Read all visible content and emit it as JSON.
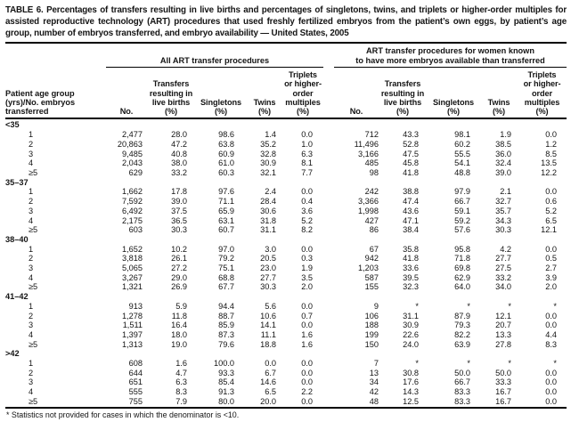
{
  "colors": {
    "text": "#141414",
    "background": "#ffffff",
    "rule": "#000000"
  },
  "table": {
    "title": "TABLE 6. Percentages of transfers resulting in live births and percentages of singletons, twins, and triplets or higher-order multiples for assisted reproductive technology (ART) procedures that used freshly fertilized embryos from the patient’s own eggs, by patient’s age group, number of embryos transferred, and embryo availability — United States, 2005",
    "stub_header_lines": [
      "Patient age group",
      "(yrs)/No. embryos",
      "transferred"
    ],
    "groups": [
      {
        "label_lines": [
          "All ART transfer procedures"
        ],
        "column_keys": [
          "no",
          "live-births-pct",
          "singletons-pct",
          "twins-pct",
          "triplets-pct"
        ],
        "column_header_lines": [
          [
            "No."
          ],
          [
            "Transfers",
            "resulting in",
            "live births",
            "(%)"
          ],
          [
            "Singletons",
            "(%)"
          ],
          [
            "Twins",
            "(%)"
          ],
          [
            "Triplets",
            "or higher-",
            "order",
            "multiples",
            "(%)"
          ]
        ]
      },
      {
        "label_lines": [
          "ART transfer procedures for women known",
          "to have more embryos available than transferred"
        ],
        "column_keys": [
          "no",
          "live-births-pct",
          "singletons-pct",
          "twins-pct",
          "triplets-pct"
        ],
        "column_header_lines": [
          [
            "No."
          ],
          [
            "Transfers",
            "resulting in",
            "live births",
            "(%)"
          ],
          [
            "Singletons",
            "(%)"
          ],
          [
            "Twins",
            "(%)"
          ],
          [
            "Triplets",
            "or higher-",
            "order",
            "multiples",
            "(%)"
          ]
        ]
      }
    ],
    "age_groups": [
      {
        "label": "<35",
        "rows": [
          {
            "embryos": "1",
            "all": [
              "2,477",
              "28.0",
              "98.6",
              "1.4",
              "0.0"
            ],
            "more": [
              "712",
              "43.3",
              "98.1",
              "1.9",
              "0.0"
            ]
          },
          {
            "embryos": "2",
            "all": [
              "20,863",
              "47.2",
              "63.8",
              "35.2",
              "1.0"
            ],
            "more": [
              "11,496",
              "52.8",
              "60.2",
              "38.5",
              "1.2"
            ]
          },
          {
            "embryos": "3",
            "all": [
              "9,485",
              "40.8",
              "60.9",
              "32.8",
              "6.3"
            ],
            "more": [
              "3,166",
              "47.5",
              "55.5",
              "36.0",
              "8.5"
            ]
          },
          {
            "embryos": "4",
            "all": [
              "2,043",
              "38.0",
              "61.0",
              "30.9",
              "8.1"
            ],
            "more": [
              "485",
              "45.8",
              "54.1",
              "32.4",
              "13.5"
            ]
          },
          {
            "embryos": "≥5",
            "all": [
              "629",
              "33.2",
              "60.3",
              "32.1",
              "7.7"
            ],
            "more": [
              "98",
              "41.8",
              "48.8",
              "39.0",
              "12.2"
            ]
          }
        ]
      },
      {
        "label": "35–37",
        "rows": [
          {
            "embryos": "1",
            "all": [
              "1,662",
              "17.8",
              "97.6",
              "2.4",
              "0.0"
            ],
            "more": [
              "242",
              "38.8",
              "97.9",
              "2.1",
              "0.0"
            ]
          },
          {
            "embryos": "2",
            "all": [
              "7,592",
              "39.0",
              "71.1",
              "28.4",
              "0.4"
            ],
            "more": [
              "3,366",
              "47.4",
              "66.7",
              "32.7",
              "0.6"
            ]
          },
          {
            "embryos": "3",
            "all": [
              "6,492",
              "37.5",
              "65.9",
              "30.6",
              "3.6"
            ],
            "more": [
              "1,998",
              "43.6",
              "59.1",
              "35.7",
              "5.2"
            ]
          },
          {
            "embryos": "4",
            "all": [
              "2,175",
              "36.5",
              "63.1",
              "31.8",
              "5.2"
            ],
            "more": [
              "427",
              "47.1",
              "59.2",
              "34.3",
              "6.5"
            ]
          },
          {
            "embryos": "≥5",
            "all": [
              "603",
              "30.3",
              "60.7",
              "31.1",
              "8.2"
            ],
            "more": [
              "86",
              "38.4",
              "57.6",
              "30.3",
              "12.1"
            ]
          }
        ]
      },
      {
        "label": "38–40",
        "rows": [
          {
            "embryos": "1",
            "all": [
              "1,652",
              "10.2",
              "97.0",
              "3.0",
              "0.0"
            ],
            "more": [
              "67",
              "35.8",
              "95.8",
              "4.2",
              "0.0"
            ]
          },
          {
            "embryos": "2",
            "all": [
              "3,818",
              "26.1",
              "79.2",
              "20.5",
              "0.3"
            ],
            "more": [
              "942",
              "41.8",
              "71.8",
              "27.7",
              "0.5"
            ]
          },
          {
            "embryos": "3",
            "all": [
              "5,065",
              "27.2",
              "75.1",
              "23.0",
              "1.9"
            ],
            "more": [
              "1,203",
              "33.6",
              "69.8",
              "27.5",
              "2.7"
            ]
          },
          {
            "embryos": "4",
            "all": [
              "3,267",
              "29.0",
              "68.8",
              "27.7",
              "3.5"
            ],
            "more": [
              "587",
              "39.5",
              "62.9",
              "33.2",
              "3.9"
            ]
          },
          {
            "embryos": "≥5",
            "all": [
              "1,321",
              "26.9",
              "67.7",
              "30.3",
              "2.0"
            ],
            "more": [
              "155",
              "32.3",
              "64.0",
              "34.0",
              "2.0"
            ]
          }
        ]
      },
      {
        "label": "41–42",
        "rows": [
          {
            "embryos": "1",
            "all": [
              "913",
              "5.9",
              "94.4",
              "5.6",
              "0.0"
            ],
            "more": [
              "9",
              "*",
              "*",
              "*",
              "*"
            ]
          },
          {
            "embryos": "2",
            "all": [
              "1,278",
              "11.8",
              "88.7",
              "10.6",
              "0.7"
            ],
            "more": [
              "106",
              "31.1",
              "87.9",
              "12.1",
              "0.0"
            ]
          },
          {
            "embryos": "3",
            "all": [
              "1,511",
              "16.4",
              "85.9",
              "14.1",
              "0.0"
            ],
            "more": [
              "188",
              "30.9",
              "79.3",
              "20.7",
              "0.0"
            ]
          },
          {
            "embryos": "4",
            "all": [
              "1,397",
              "18.0",
              "87.3",
              "11.1",
              "1.6"
            ],
            "more": [
              "199",
              "22.6",
              "82.2",
              "13.3",
              "4.4"
            ]
          },
          {
            "embryos": "≥5",
            "all": [
              "1,313",
              "19.0",
              "79.6",
              "18.8",
              "1.6"
            ],
            "more": [
              "150",
              "24.0",
              "63.9",
              "27.8",
              "8.3"
            ]
          }
        ]
      },
      {
        "label": ">42",
        "rows": [
          {
            "embryos": "1",
            "all": [
              "608",
              "1.6",
              "100.0",
              "0.0",
              "0.0"
            ],
            "more": [
              "7",
              "*",
              "*",
              "*",
              "*"
            ]
          },
          {
            "embryos": "2",
            "all": [
              "644",
              "4.7",
              "93.3",
              "6.7",
              "0.0"
            ],
            "more": [
              "13",
              "30.8",
              "50.0",
              "50.0",
              "0.0"
            ]
          },
          {
            "embryos": "3",
            "all": [
              "651",
              "6.3",
              "85.4",
              "14.6",
              "0.0"
            ],
            "more": [
              "34",
              "17.6",
              "66.7",
              "33.3",
              "0.0"
            ]
          },
          {
            "embryos": "4",
            "all": [
              "555",
              "8.3",
              "91.3",
              "6.5",
              "2.2"
            ],
            "more": [
              "42",
              "14.3",
              "83.3",
              "16.7",
              "0.0"
            ]
          },
          {
            "embryos": "≥5",
            "all": [
              "755",
              "7.9",
              "80.0",
              "20.0",
              "0.0"
            ],
            "more": [
              "48",
              "12.5",
              "83.3",
              "16.7",
              "0.0"
            ]
          }
        ]
      }
    ],
    "footnote": "* Statistics not provided for cases in which the denominator is <10."
  }
}
